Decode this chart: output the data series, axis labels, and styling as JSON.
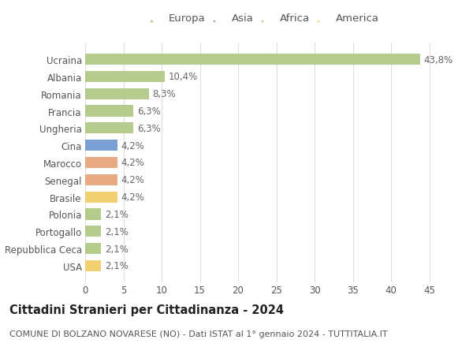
{
  "countries": [
    "Ucraina",
    "Albania",
    "Romania",
    "Francia",
    "Ungheria",
    "Cina",
    "Marocco",
    "Senegal",
    "Brasile",
    "Polonia",
    "Portogallo",
    "Repubblica Ceca",
    "USA"
  ],
  "values": [
    43.8,
    10.4,
    8.3,
    6.3,
    6.3,
    4.2,
    4.2,
    4.2,
    4.2,
    2.1,
    2.1,
    2.1,
    2.1
  ],
  "labels": [
    "43,8%",
    "10,4%",
    "8,3%",
    "6,3%",
    "6,3%",
    "4,2%",
    "4,2%",
    "4,2%",
    "4,2%",
    "2,1%",
    "2,1%",
    "2,1%",
    "2,1%"
  ],
  "continents": [
    "Europa",
    "Europa",
    "Europa",
    "Europa",
    "Europa",
    "Asia",
    "Africa",
    "Africa",
    "America",
    "Europa",
    "Europa",
    "Europa",
    "America"
  ],
  "colors": {
    "Europa": "#b5cc8e",
    "Asia": "#7b9fd4",
    "Africa": "#e8aa82",
    "America": "#f0d070"
  },
  "legend_order": [
    "Europa",
    "Asia",
    "Africa",
    "America"
  ],
  "xlim": [
    0,
    47
  ],
  "xticks": [
    0,
    5,
    10,
    15,
    20,
    25,
    30,
    35,
    40,
    45
  ],
  "title": "Cittadini Stranieri per Cittadinanza - 2024",
  "subtitle": "COMUNE DI BOLZANO NOVARESE (NO) - Dati ISTAT al 1° gennaio 2024 - TUTTITALIA.IT",
  "bg_color": "#ffffff",
  "grid_color": "#dddddd",
  "bar_height": 0.65,
  "label_fontsize": 8.5,
  "title_fontsize": 10.5,
  "subtitle_fontsize": 8,
  "tick_fontsize": 8.5,
  "legend_fontsize": 9.5
}
